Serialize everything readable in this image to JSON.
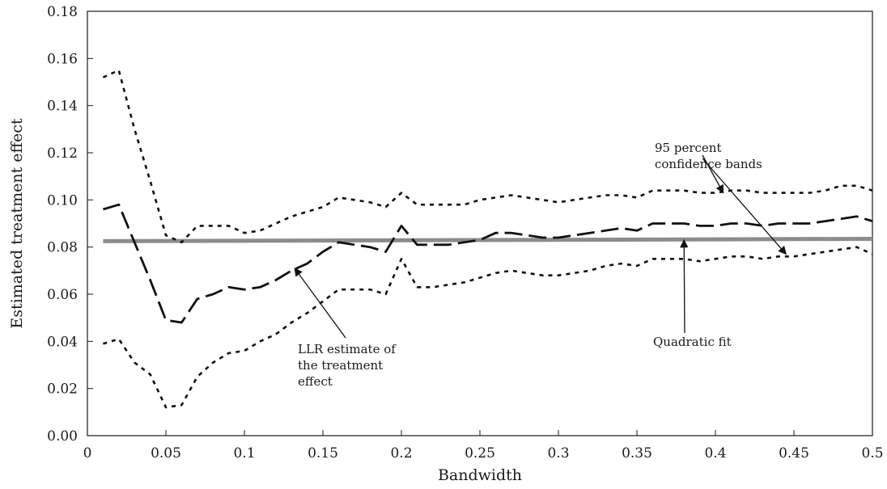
{
  "chart_data": {
    "type": "line",
    "title": "",
    "xlabel": "Bandwidth",
    "ylabel": "Estimated treatment effect",
    "xlim": [
      0,
      0.5
    ],
    "ylim": [
      0,
      0.18
    ],
    "x_ticks": [
      "0",
      "0.05",
      "0.1",
      "0.15",
      "0.2",
      "0.25",
      "0.3",
      "0.35",
      "0.4",
      "0.45",
      "0.5"
    ],
    "y_ticks": [
      "0.00",
      "0.02",
      "0.04",
      "0.06",
      "0.08",
      "0.10",
      "0.12",
      "0.14",
      "0.16",
      "0.18"
    ],
    "grid": false,
    "legend": "none",
    "series": [
      {
        "id": "upper_band",
        "style": "dotted",
        "color": "#111111",
        "x": [
          0.01,
          0.02,
          0.03,
          0.04,
          0.05,
          0.06,
          0.07,
          0.08,
          0.09,
          0.1,
          0.11,
          0.12,
          0.13,
          0.14,
          0.15,
          0.16,
          0.17,
          0.18,
          0.19,
          0.2,
          0.21,
          0.22,
          0.23,
          0.24,
          0.25,
          0.26,
          0.27,
          0.28,
          0.29,
          0.3,
          0.31,
          0.32,
          0.33,
          0.34,
          0.35,
          0.36,
          0.37,
          0.38,
          0.39,
          0.4,
          0.41,
          0.42,
          0.43,
          0.44,
          0.45,
          0.46,
          0.47,
          0.48,
          0.49,
          0.5
        ],
        "values": [
          0.152,
          0.155,
          0.13,
          0.108,
          0.085,
          0.082,
          0.089,
          0.089,
          0.089,
          0.086,
          0.087,
          0.09,
          0.093,
          0.095,
          0.097,
          0.101,
          0.1,
          0.099,
          0.097,
          0.103,
          0.098,
          0.098,
          0.098,
          0.098,
          0.1,
          0.101,
          0.102,
          0.101,
          0.1,
          0.099,
          0.1,
          0.101,
          0.102,
          0.102,
          0.101,
          0.104,
          0.104,
          0.104,
          0.103,
          0.103,
          0.104,
          0.104,
          0.103,
          0.103,
          0.103,
          0.103,
          0.104,
          0.106,
          0.106,
          0.104
        ]
      },
      {
        "id": "llr_estimate",
        "style": "dashed",
        "color": "#111111",
        "x": [
          0.01,
          0.02,
          0.03,
          0.04,
          0.05,
          0.06,
          0.07,
          0.08,
          0.09,
          0.1,
          0.11,
          0.12,
          0.13,
          0.14,
          0.15,
          0.16,
          0.17,
          0.18,
          0.19,
          0.2,
          0.21,
          0.22,
          0.23,
          0.24,
          0.25,
          0.26,
          0.27,
          0.28,
          0.29,
          0.3,
          0.31,
          0.32,
          0.33,
          0.34,
          0.35,
          0.36,
          0.37,
          0.38,
          0.39,
          0.4,
          0.41,
          0.42,
          0.43,
          0.44,
          0.45,
          0.46,
          0.47,
          0.48,
          0.49,
          0.5
        ],
        "values": [
          0.096,
          0.098,
          0.082,
          0.066,
          0.049,
          0.048,
          0.058,
          0.06,
          0.063,
          0.062,
          0.063,
          0.066,
          0.07,
          0.073,
          0.078,
          0.082,
          0.081,
          0.08,
          0.078,
          0.089,
          0.081,
          0.081,
          0.081,
          0.082,
          0.083,
          0.086,
          0.086,
          0.085,
          0.084,
          0.084,
          0.085,
          0.086,
          0.087,
          0.088,
          0.087,
          0.09,
          0.09,
          0.09,
          0.089,
          0.089,
          0.09,
          0.09,
          0.089,
          0.09,
          0.09,
          0.09,
          0.091,
          0.092,
          0.093,
          0.091
        ]
      },
      {
        "id": "lower_band",
        "style": "dotted",
        "color": "#111111",
        "x": [
          0.01,
          0.02,
          0.03,
          0.04,
          0.05,
          0.06,
          0.07,
          0.08,
          0.09,
          0.1,
          0.11,
          0.12,
          0.13,
          0.14,
          0.15,
          0.16,
          0.17,
          0.18,
          0.19,
          0.2,
          0.21,
          0.22,
          0.23,
          0.24,
          0.25,
          0.26,
          0.27,
          0.28,
          0.29,
          0.3,
          0.31,
          0.32,
          0.33,
          0.34,
          0.35,
          0.36,
          0.37,
          0.38,
          0.39,
          0.4,
          0.41,
          0.42,
          0.43,
          0.44,
          0.45,
          0.46,
          0.47,
          0.48,
          0.49,
          0.5
        ],
        "values": [
          0.039,
          0.041,
          0.031,
          0.026,
          0.012,
          0.013,
          0.025,
          0.031,
          0.035,
          0.036,
          0.04,
          0.043,
          0.048,
          0.052,
          0.057,
          0.062,
          0.062,
          0.062,
          0.06,
          0.075,
          0.063,
          0.063,
          0.064,
          0.065,
          0.067,
          0.069,
          0.07,
          0.069,
          0.068,
          0.068,
          0.069,
          0.07,
          0.072,
          0.073,
          0.072,
          0.075,
          0.075,
          0.075,
          0.074,
          0.075,
          0.076,
          0.076,
          0.075,
          0.076,
          0.076,
          0.077,
          0.078,
          0.079,
          0.08,
          0.077
        ]
      },
      {
        "id": "quadratic_fit",
        "style": "solid-thick",
        "color": "#8c8c8c",
        "x": [
          0.01,
          0.5
        ],
        "values": [
          0.0825,
          0.0835
        ]
      }
    ],
    "annotations": [
      {
        "id": "bands",
        "lines": [
          "95 percent",
          "confidence bands"
        ],
        "arrows_to": [
          [
            0.405,
            0.103
          ],
          [
            0.445,
            0.077
          ]
        ]
      },
      {
        "id": "quad",
        "lines": [
          "Quadratic fit"
        ],
        "arrows_to": [
          [
            0.38,
            0.083
          ]
        ]
      },
      {
        "id": "llr",
        "lines": [
          "LLR estimate of",
          "the treatment",
          "effect"
        ],
        "arrows_to": [
          [
            0.132,
            0.071
          ]
        ]
      }
    ]
  }
}
